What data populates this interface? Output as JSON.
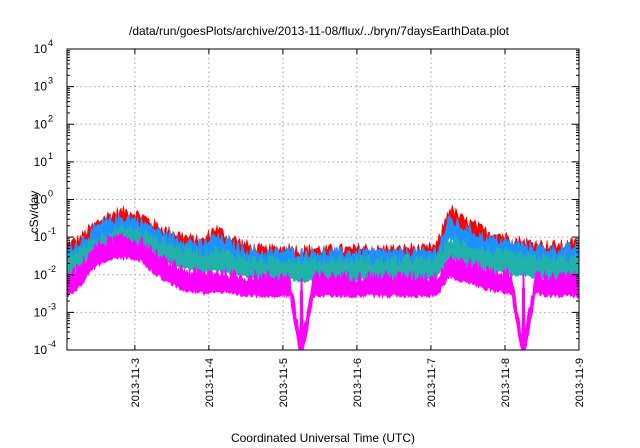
{
  "chart_data": {
    "type": "line",
    "title": "/data/run/goesPlots/archive/2013-11-08/flux/../bryn/7daysEarthData.plot",
    "xlabel": "Coordinated Universal Time (UTC)",
    "ylabel": "cSv/day",
    "y_scale": "log",
    "ylim": [
      0.0001,
      10000
    ],
    "xlim": [
      "2013-11-02T02:00",
      "2013-11-09T00:00"
    ],
    "x_ticks": [
      "2013-11-3",
      "2013-11-4",
      "2013-11-5",
      "2013-11-6",
      "2013-11-7",
      "2013-11-8",
      "2013-11-9"
    ],
    "y_ticks": [
      {
        "value": 0.0001,
        "base": "10",
        "exp": "-4"
      },
      {
        "value": 0.001,
        "base": "10",
        "exp": "-3"
      },
      {
        "value": 0.01,
        "base": "10",
        "exp": "-2"
      },
      {
        "value": 0.1,
        "base": "10",
        "exp": "-1"
      },
      {
        "value": 1,
        "base": "10",
        "exp": "0"
      },
      {
        "value": 10,
        "base": "10",
        "exp": "1"
      },
      {
        "value": 100,
        "base": "10",
        "exp": "2"
      },
      {
        "value": 1000,
        "base": "10",
        "exp": "3"
      },
      {
        "value": 10000,
        "base": "10",
        "exp": "4"
      }
    ],
    "grid": true,
    "x": [
      "2013-11-02T02:00",
      "2013-11-02T06:00",
      "2013-11-02T10:00",
      "2013-11-02T14:00",
      "2013-11-02T18:00",
      "2013-11-02T22:00",
      "2013-11-03T02:00",
      "2013-11-03T06:00",
      "2013-11-03T10:00",
      "2013-11-03T14:00",
      "2013-11-03T18:00",
      "2013-11-03T22:00",
      "2013-11-04T02:00",
      "2013-11-04T06:00",
      "2013-11-04T10:00",
      "2013-11-04T14:00",
      "2013-11-04T18:00",
      "2013-11-04T22:00",
      "2013-11-05T02:00",
      "2013-11-05T06:00",
      "2013-11-05T10:00",
      "2013-11-05T14:00",
      "2013-11-05T18:00",
      "2013-11-05T22:00",
      "2013-11-06T02:00",
      "2013-11-06T06:00",
      "2013-11-06T10:00",
      "2013-11-06T14:00",
      "2013-11-06T18:00",
      "2013-11-06T22:00",
      "2013-11-07T02:00",
      "2013-11-07T06:00",
      "2013-11-07T10:00",
      "2013-11-07T14:00",
      "2013-11-07T18:00",
      "2013-11-07T22:00",
      "2013-11-08T02:00",
      "2013-11-08T06:00",
      "2013-11-08T10:00",
      "2013-11-08T14:00",
      "2013-11-08T18:00",
      "2013-11-08T22:00",
      "2013-11-09T00:00"
    ],
    "series": [
      {
        "color": "#ff0000",
        "values": [
          0.04,
          0.06,
          0.12,
          0.22,
          0.3,
          0.33,
          0.25,
          0.15,
          0.1,
          0.08,
          0.06,
          0.05,
          0.12,
          0.07,
          0.05,
          0.035,
          0.03,
          0.032,
          0.035,
          0.03,
          0.033,
          0.03,
          0.032,
          0.03,
          0.035,
          0.03,
          0.033,
          0.03,
          0.035,
          0.03,
          0.04,
          0.4,
          0.2,
          0.14,
          0.09,
          0.08,
          0.06,
          0.05,
          0.045,
          0.04,
          0.04,
          0.045,
          0.05
        ]
      },
      {
        "color": "#1e90ff",
        "values": [
          0.03,
          0.05,
          0.09,
          0.16,
          0.2,
          0.22,
          0.17,
          0.11,
          0.08,
          0.06,
          0.05,
          0.04,
          0.07,
          0.05,
          0.035,
          0.028,
          0.025,
          0.026,
          0.028,
          0.025,
          0.027,
          0.025,
          0.026,
          0.025,
          0.028,
          0.025,
          0.027,
          0.025,
          0.028,
          0.025,
          0.03,
          0.2,
          0.12,
          0.09,
          0.06,
          0.055,
          0.045,
          0.04,
          0.035,
          0.032,
          0.032,
          0.035,
          0.038
        ]
      },
      {
        "color": "#20b2aa",
        "values": [
          0.02,
          0.03,
          0.05,
          0.08,
          0.1,
          0.11,
          0.09,
          0.06,
          0.045,
          0.035,
          0.03,
          0.025,
          0.03,
          0.025,
          0.02,
          0.017,
          0.015,
          0.016,
          0.017,
          0.015,
          0.016,
          0.015,
          0.016,
          0.015,
          0.017,
          0.015,
          0.016,
          0.015,
          0.017,
          0.015,
          0.018,
          0.06,
          0.045,
          0.035,
          0.028,
          0.025,
          0.022,
          0.02,
          0.018,
          0.017,
          0.017,
          0.018,
          0.019
        ]
      },
      {
        "color": "#ff00ff",
        "values": [
          0.006,
          0.01,
          0.03,
          0.05,
          0.06,
          0.06,
          0.05,
          0.025,
          0.015,
          0.01,
          0.008,
          0.007,
          0.008,
          0.007,
          0.006,
          0.006,
          0.006,
          0.006,
          0.006,
          0.0001,
          0.006,
          0.006,
          0.006,
          0.006,
          0.006,
          0.006,
          0.006,
          0.006,
          0.006,
          0.006,
          0.006,
          0.02,
          0.015,
          0.012,
          0.009,
          0.008,
          0.007,
          0.0001,
          0.007,
          0.006,
          0.006,
          0.006,
          0.006
        ]
      }
    ]
  }
}
